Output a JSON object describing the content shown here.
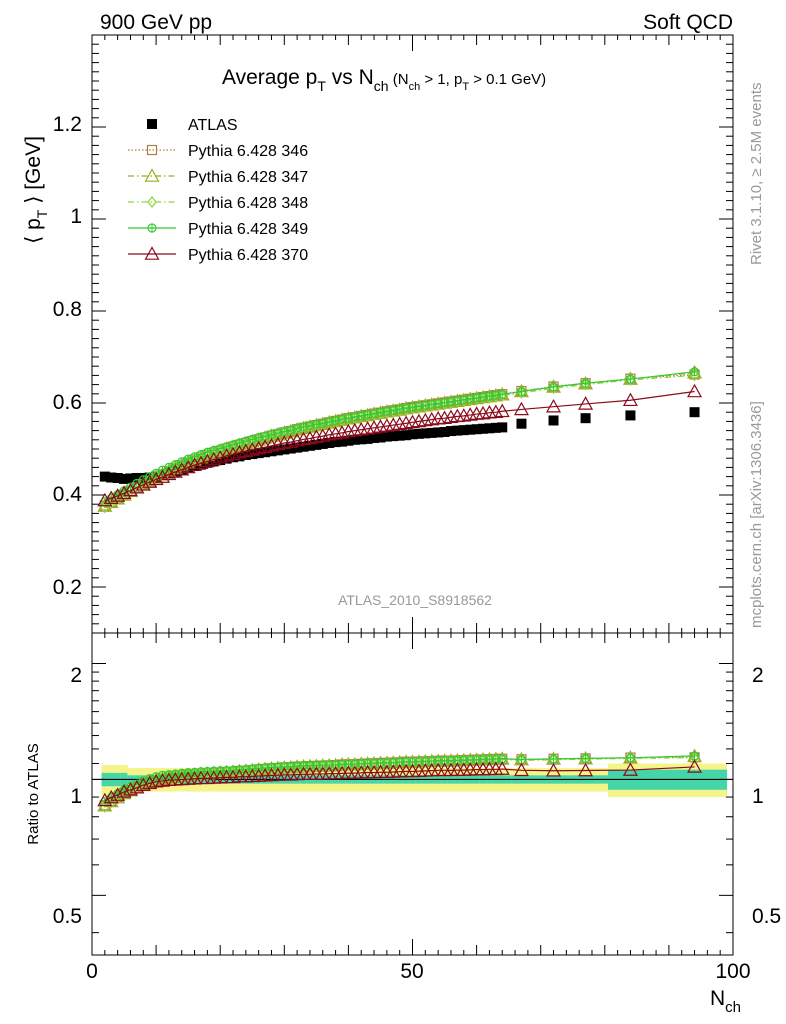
{
  "header": {
    "left": "900 GeV pp",
    "right": "Soft QCD"
  },
  "title": {
    "main": "Average p",
    "main_sub": "T",
    "vs": " vs N",
    "vs_sub": "ch",
    "cond_open": " (N",
    "cond_sub1": "ch",
    "cond_mid": " > 1, p",
    "cond_sub2": "T",
    "cond_close": " > 0.1 GeV)"
  },
  "ylabel": {
    "pre": "⟨ p",
    "sub": "T",
    "post": " ⟩  [GeV]"
  },
  "ratio_ylabel": "Ratio to ATLAS",
  "xlabel": {
    "main": "N",
    "sub": "ch"
  },
  "side_text": {
    "rivet": "Rivet 3.1.10, ≥ 2.5M events",
    "mcplots": "mcplots.cern.ch [arXiv:1306.3436]"
  },
  "analysis_id": "ATLAS_2010_S8918562",
  "colors": {
    "data": "#000000",
    "p346": "#b07b45",
    "p347": "#9aae22",
    "p348": "#8fd63a",
    "p349": "#33cc33",
    "p370": "#8b0a1c",
    "band_inner": "#44d6a8",
    "band_outer": "#f4f48a"
  },
  "chart_data": [
    {
      "type": "scatter",
      "panel": "main",
      "xlim": [
        0,
        100
      ],
      "ylim": [
        0.1,
        1.4
      ],
      "x_ticks": [
        0,
        50,
        100
      ],
      "y_ticks": [
        0.2,
        0.4,
        0.6,
        0.8,
        1,
        1.2
      ],
      "y_tick_labels": [
        "0.2",
        "0.4",
        "0.6",
        "0.8",
        "1",
        "1.2"
      ],
      "legend_position": "top-left",
      "x": [
        2,
        3,
        4,
        5,
        6,
        7,
        8,
        9,
        10,
        11,
        12,
        13,
        14,
        15,
        16,
        17,
        18,
        19,
        20,
        21,
        22,
        23,
        24,
        25,
        26,
        27,
        28,
        29,
        30,
        31,
        32,
        33,
        34,
        35,
        36,
        37,
        38,
        39,
        40,
        41,
        42,
        43,
        44,
        45,
        46,
        47,
        48,
        49,
        50,
        51,
        52,
        53,
        54,
        55,
        56,
        57,
        58,
        59,
        60,
        61,
        62,
        63,
        64,
        67,
        72,
        77,
        84,
        94
      ],
      "series": [
        {
          "name": "ATLAS",
          "marker": "filled-square",
          "values": [
            0.44,
            0.438,
            0.437,
            0.435,
            0.436,
            0.437,
            0.437,
            0.438,
            0.44,
            0.443,
            0.447,
            0.451,
            0.455,
            0.459,
            0.463,
            0.466,
            0.47,
            0.473,
            0.476,
            0.479,
            0.482,
            0.484,
            0.487,
            0.489,
            0.491,
            0.493,
            0.495,
            0.497,
            0.499,
            0.501,
            0.503,
            0.505,
            0.507,
            0.509,
            0.511,
            0.513,
            0.515,
            0.516,
            0.518,
            0.52,
            0.521,
            0.522,
            0.524,
            0.525,
            0.527,
            0.528,
            0.529,
            0.53,
            0.532,
            0.533,
            0.534,
            0.535,
            0.536,
            0.537,
            0.539,
            0.54,
            0.541,
            0.542,
            0.543,
            0.544,
            0.545,
            0.546,
            0.547,
            0.555,
            0.562,
            0.567,
            0.573,
            0.58
          ]
        },
        {
          "name": "Pythia 6.428 346",
          "marker": "open-square",
          "line": "dotted",
          "values": [
            0.377,
            0.385,
            0.393,
            0.401,
            0.409,
            0.417,
            0.424,
            0.431,
            0.438,
            0.445,
            0.452,
            0.459,
            0.465,
            0.471,
            0.477,
            0.482,
            0.487,
            0.492,
            0.496,
            0.501,
            0.505,
            0.509,
            0.513,
            0.517,
            0.521,
            0.525,
            0.529,
            0.532,
            0.536,
            0.539,
            0.543,
            0.546,
            0.549,
            0.552,
            0.555,
            0.558,
            0.561,
            0.564,
            0.567,
            0.569,
            0.572,
            0.574,
            0.577,
            0.579,
            0.582,
            0.584,
            0.586,
            0.589,
            0.591,
            0.593,
            0.595,
            0.597,
            0.599,
            0.601,
            0.603,
            0.605,
            0.607,
            0.609,
            0.611,
            0.613,
            0.615,
            0.617,
            0.619,
            0.626,
            0.636,
            0.643,
            0.653,
            0.662
          ]
        },
        {
          "name": "Pythia 6.428 347",
          "marker": "open-triangle",
          "line": "dash-dot",
          "values": [
            0.376,
            0.384,
            0.392,
            0.4,
            0.408,
            0.416,
            0.423,
            0.43,
            0.437,
            0.444,
            0.451,
            0.458,
            0.464,
            0.47,
            0.476,
            0.481,
            0.486,
            0.491,
            0.495,
            0.5,
            0.504,
            0.508,
            0.512,
            0.516,
            0.52,
            0.524,
            0.528,
            0.531,
            0.535,
            0.538,
            0.542,
            0.545,
            0.548,
            0.551,
            0.554,
            0.557,
            0.56,
            0.563,
            0.566,
            0.568,
            0.571,
            0.573,
            0.576,
            0.578,
            0.581,
            0.583,
            0.585,
            0.588,
            0.59,
            0.592,
            0.594,
            0.596,
            0.598,
            0.6,
            0.602,
            0.604,
            0.606,
            0.608,
            0.61,
            0.612,
            0.614,
            0.616,
            0.618,
            0.625,
            0.635,
            0.642,
            0.652,
            0.666
          ]
        },
        {
          "name": "Pythia 6.428 348",
          "marker": "open-diamond",
          "line": "dash-dot",
          "values": [
            0.373,
            0.382,
            0.391,
            0.4,
            0.409,
            0.417,
            0.425,
            0.433,
            0.441,
            0.448,
            0.455,
            0.462,
            0.468,
            0.474,
            0.479,
            0.484,
            0.489,
            0.493,
            0.497,
            0.501,
            0.505,
            0.509,
            0.513,
            0.517,
            0.521,
            0.525,
            0.528,
            0.532,
            0.535,
            0.538,
            0.541,
            0.544,
            0.547,
            0.55,
            0.553,
            0.556,
            0.559,
            0.562,
            0.565,
            0.567,
            0.57,
            0.572,
            0.575,
            0.577,
            0.58,
            0.582,
            0.584,
            0.587,
            0.589,
            0.591,
            0.593,
            0.595,
            0.597,
            0.599,
            0.601,
            0.603,
            0.605,
            0.607,
            0.609,
            0.611,
            0.612,
            0.614,
            0.616,
            0.622,
            0.632,
            0.64,
            0.65,
            0.66
          ]
        },
        {
          "name": "Pythia 6.428 349",
          "marker": "open-circle-plus",
          "line": "solid",
          "values": [
            0.385,
            0.393,
            0.401,
            0.409,
            0.417,
            0.425,
            0.433,
            0.44,
            0.447,
            0.454,
            0.46,
            0.466,
            0.472,
            0.478,
            0.483,
            0.488,
            0.493,
            0.497,
            0.501,
            0.505,
            0.509,
            0.513,
            0.517,
            0.521,
            0.525,
            0.528,
            0.532,
            0.535,
            0.538,
            0.541,
            0.545,
            0.548,
            0.551,
            0.554,
            0.556,
            0.559,
            0.562,
            0.565,
            0.567,
            0.57,
            0.572,
            0.575,
            0.577,
            0.58,
            0.582,
            0.584,
            0.587,
            0.589,
            0.591,
            0.593,
            0.595,
            0.597,
            0.599,
            0.601,
            0.603,
            0.605,
            0.607,
            0.609,
            0.611,
            0.613,
            0.615,
            0.617,
            0.619,
            0.625,
            0.635,
            0.643,
            0.652,
            0.668
          ]
        },
        {
          "name": "Pythia 6.428 370",
          "marker": "open-triangle",
          "line": "solid",
          "values": [
            0.388,
            0.393,
            0.398,
            0.404,
            0.41,
            0.416,
            0.422,
            0.428,
            0.434,
            0.439,
            0.445,
            0.45,
            0.455,
            0.46,
            0.465,
            0.469,
            0.473,
            0.477,
            0.481,
            0.485,
            0.488,
            0.492,
            0.495,
            0.498,
            0.501,
            0.504,
            0.507,
            0.51,
            0.513,
            0.515,
            0.518,
            0.521,
            0.523,
            0.526,
            0.528,
            0.531,
            0.533,
            0.535,
            0.538,
            0.54,
            0.542,
            0.544,
            0.546,
            0.548,
            0.55,
            0.552,
            0.554,
            0.556,
            0.558,
            0.56,
            0.562,
            0.564,
            0.566,
            0.567,
            0.569,
            0.571,
            0.572,
            0.574,
            0.576,
            0.577,
            0.579,
            0.58,
            0.582,
            0.586,
            0.592,
            0.598,
            0.606,
            0.625
          ]
        }
      ]
    },
    {
      "type": "line",
      "panel": "ratio",
      "title": "Ratio to ATLAS",
      "xlim": [
        0,
        100
      ],
      "ylim": [
        0.35,
        2.4
      ],
      "y_scale": "log",
      "y_ticks": [
        0.5,
        1,
        2
      ],
      "y_tick_labels": [
        "0.5",
        "1",
        "2"
      ],
      "x_tick_labels": [
        "0",
        "50",
        "100"
      ],
      "note": "ratio = Pythia / ATLAS per bin, computed from the main-panel values"
    }
  ]
}
